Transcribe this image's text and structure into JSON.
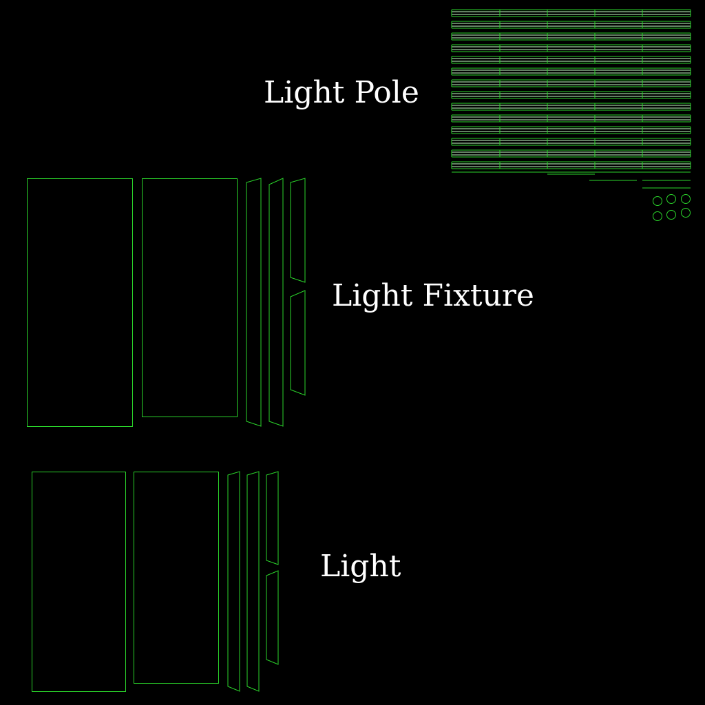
{
  "labels": {
    "light_pole": "Light Pole",
    "light_fixture": "Light Fixture",
    "light": "Light"
  },
  "colors": {
    "background": "#000000",
    "uv_line": "#2bd62b",
    "uv_line_bright": "#c8ffc8",
    "label_text": "#ffffff"
  }
}
